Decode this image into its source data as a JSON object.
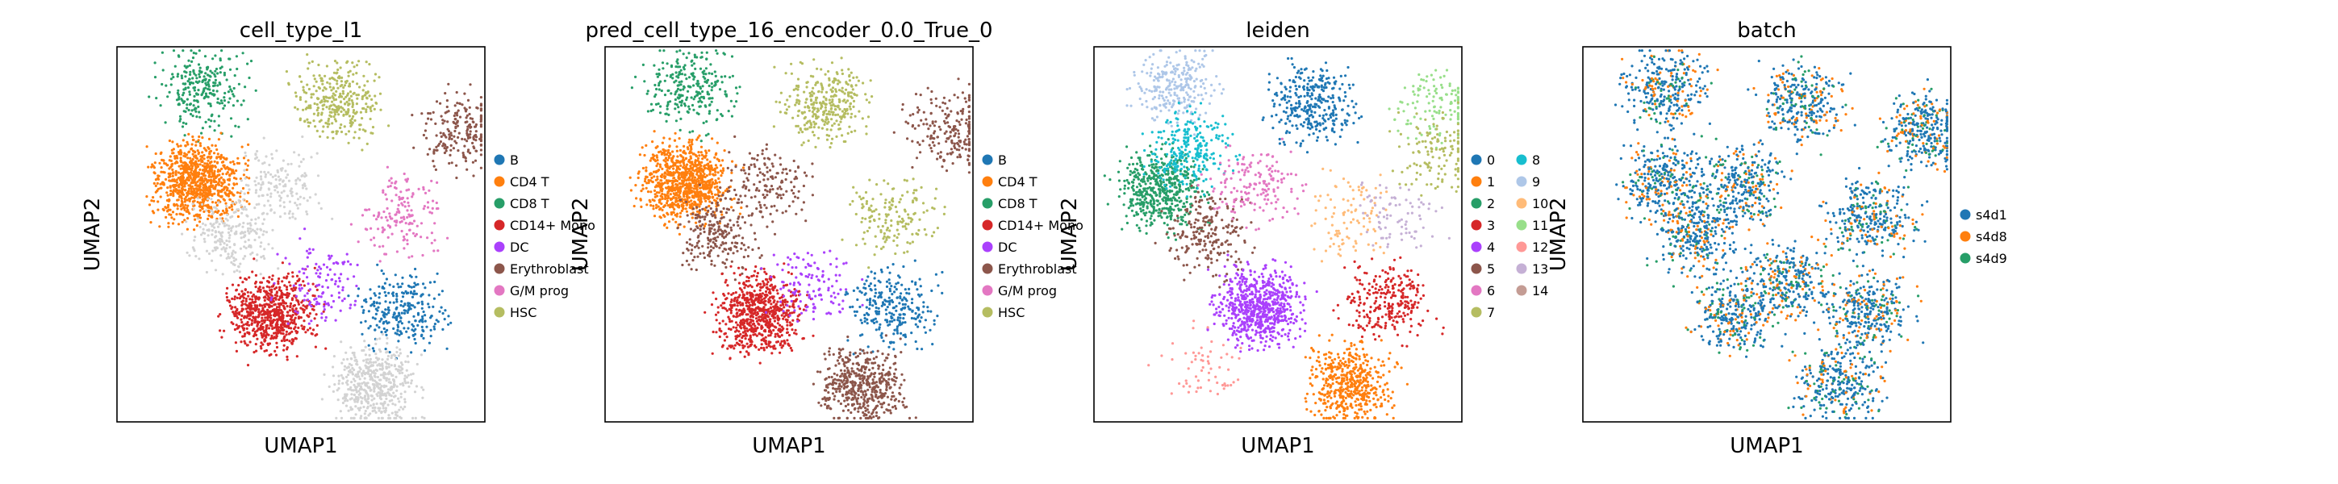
{
  "figure": {
    "panels": [
      {
        "title": "cell_type_l1",
        "xlabel": "UMAP1",
        "ylabel": "UMAP2",
        "legend": [
          "B",
          "CD4 T",
          "CD8 T",
          "CD14+ Mono",
          "DC",
          "Erythroblast",
          "G/M prog",
          "HSC"
        ],
        "legend_columns": 1
      },
      {
        "title": "pred_cell_type_16_encoder_0.0_True_0",
        "xlabel": "UMAP1",
        "ylabel": "UMAP2",
        "legend": [
          "B",
          "CD4 T",
          "CD8 T",
          "CD14+ Mono",
          "DC",
          "Erythroblast",
          "G/M prog",
          "HSC"
        ],
        "legend_columns": 1
      },
      {
        "title": "leiden",
        "xlabel": "UMAP1",
        "ylabel": "UMAP2",
        "legend": [
          "0",
          "1",
          "2",
          "3",
          "4",
          "5",
          "6",
          "7",
          "8",
          "9",
          "10",
          "11",
          "12",
          "13",
          "14"
        ],
        "legend_columns": 2
      },
      {
        "title": "batch",
        "xlabel": "UMAP1",
        "ylabel": "UMAP2",
        "legend": [
          "s4d1",
          "s4d8",
          "s4d9"
        ],
        "legend_columns": 1
      }
    ]
  },
  "colors": {
    "B": "#1f77b4",
    "CD4 T": "#ff7f0e",
    "CD8 T": "#279e68",
    "CD14+ Mono": "#d62728",
    "DC": "#aa40fc",
    "Erythroblast": "#8c564b",
    "G/M prog": "#e377c2",
    "HSC": "#b5bd61",
    "unassigned": "#d3d3d3",
    "leiden": [
      "#1f77b4",
      "#ff7f0e",
      "#279e68",
      "#d62728",
      "#aa40fc",
      "#8c564b",
      "#e377c2",
      "#b5bd61",
      "#17becf",
      "#aec7e8",
      "#ffbb78",
      "#98df8a",
      "#ff9896",
      "#c5b0d5",
      "#c49c94"
    ],
    "batch": [
      "#1f77b4",
      "#ff7f0e",
      "#279e68"
    ]
  },
  "chart_data": [
    {
      "type": "scatter",
      "title": "cell_type_l1",
      "xlabel": "UMAP1",
      "ylabel": "UMAP2",
      "legend": "right",
      "grid": false,
      "clusters": [
        {
          "label": "CD8 T",
          "cx": 0.23,
          "cy": 0.89,
          "n": 260
        },
        {
          "label": "HSC",
          "cx": 0.6,
          "cy": 0.85,
          "n": 320
        },
        {
          "label": "CD4 T",
          "cx": 0.22,
          "cy": 0.64,
          "n": 900
        },
        {
          "label": "unassigned",
          "cx": 0.31,
          "cy": 0.5,
          "n": 220
        },
        {
          "label": "unassigned",
          "cx": 0.44,
          "cy": 0.63,
          "n": 160
        },
        {
          "label": "CD14+ Mono",
          "cx": 0.42,
          "cy": 0.29,
          "n": 700
        },
        {
          "label": "DC",
          "cx": 0.56,
          "cy": 0.37,
          "n": 120
        },
        {
          "label": "B",
          "cx": 0.78,
          "cy": 0.3,
          "n": 260
        },
        {
          "label": "unassigned",
          "cx": 0.7,
          "cy": 0.1,
          "n": 480
        },
        {
          "label": "Erythroblast",
          "cx": 0.93,
          "cy": 0.78,
          "n": 200
        },
        {
          "label": "G/M prog",
          "cx": 0.78,
          "cy": 0.55,
          "n": 160
        }
      ]
    },
    {
      "type": "scatter",
      "title": "pred_cell_type_16_encoder_0.0_True_0",
      "xlabel": "UMAP1",
      "ylabel": "UMAP2",
      "legend": "right",
      "grid": false,
      "clusters": [
        {
          "label": "CD8 T",
          "cx": 0.23,
          "cy": 0.89,
          "n": 260
        },
        {
          "label": "HSC",
          "cx": 0.6,
          "cy": 0.85,
          "n": 320
        },
        {
          "label": "CD4 T",
          "cx": 0.22,
          "cy": 0.64,
          "n": 900
        },
        {
          "label": "Erythroblast",
          "cx": 0.31,
          "cy": 0.5,
          "n": 220
        },
        {
          "label": "Erythroblast",
          "cx": 0.44,
          "cy": 0.63,
          "n": 160
        },
        {
          "label": "CD14+ Mono",
          "cx": 0.42,
          "cy": 0.29,
          "n": 700
        },
        {
          "label": "DC",
          "cx": 0.56,
          "cy": 0.37,
          "n": 120
        },
        {
          "label": "B",
          "cx": 0.78,
          "cy": 0.3,
          "n": 260
        },
        {
          "label": "Erythroblast",
          "cx": 0.7,
          "cy": 0.1,
          "n": 480
        },
        {
          "label": "Erythroblast",
          "cx": 0.93,
          "cy": 0.78,
          "n": 200
        },
        {
          "label": "HSC",
          "cx": 0.78,
          "cy": 0.55,
          "n": 160
        }
      ]
    },
    {
      "type": "scatter",
      "title": "leiden",
      "xlabel": "UMAP1",
      "ylabel": "UMAP2",
      "legend": "right",
      "grid": false,
      "clusters": [
        {
          "label": "9",
          "cx": 0.23,
          "cy": 0.89,
          "n": 260
        },
        {
          "label": "0",
          "cx": 0.6,
          "cy": 0.85,
          "n": 320
        },
        {
          "label": "2",
          "cx": 0.18,
          "cy": 0.62,
          "n": 500
        },
        {
          "label": "8",
          "cx": 0.26,
          "cy": 0.73,
          "n": 250
        },
        {
          "label": "5",
          "cx": 0.31,
          "cy": 0.5,
          "n": 220
        },
        {
          "label": "6",
          "cx": 0.44,
          "cy": 0.63,
          "n": 160
        },
        {
          "label": "4",
          "cx": 0.45,
          "cy": 0.31,
          "n": 700
        },
        {
          "label": "12",
          "cx": 0.3,
          "cy": 0.14,
          "n": 60
        },
        {
          "label": "3",
          "cx": 0.8,
          "cy": 0.32,
          "n": 260
        },
        {
          "label": "1",
          "cx": 0.7,
          "cy": 0.1,
          "n": 480
        },
        {
          "label": "11",
          "cx": 0.93,
          "cy": 0.84,
          "n": 120
        },
        {
          "label": "7",
          "cx": 0.93,
          "cy": 0.72,
          "n": 120
        },
        {
          "label": "10",
          "cx": 0.7,
          "cy": 0.55,
          "n": 100
        },
        {
          "label": "13",
          "cx": 0.82,
          "cy": 0.55,
          "n": 80
        }
      ]
    },
    {
      "type": "scatter",
      "title": "batch",
      "xlabel": "UMAP1",
      "ylabel": "UMAP2",
      "legend": "right",
      "grid": false,
      "series": [
        "s4d1",
        "s4d8",
        "s4d9"
      ]
    }
  ]
}
